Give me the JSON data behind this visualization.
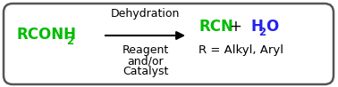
{
  "background_color": "#ffffff",
  "border_color": "#555555",
  "arrow_color": "#000000",
  "reactant_color": "#00bb00",
  "product_rcn_color": "#00bb00",
  "product_h2o_color": "#2222ee",
  "black_color": "#000000",
  "above_arrow": "Dehydration",
  "below_arrow_lines": [
    "Reagent",
    "and/or",
    "Catalyst"
  ],
  "product1": "RCN",
  "plus_sign": "+",
  "product2_main": "H",
  "product2_sub": "2",
  "product2_end": "O",
  "footnote": "R = Alkyl, Aryl",
  "fig_width": 3.78,
  "fig_height": 0.98,
  "dpi": 100
}
